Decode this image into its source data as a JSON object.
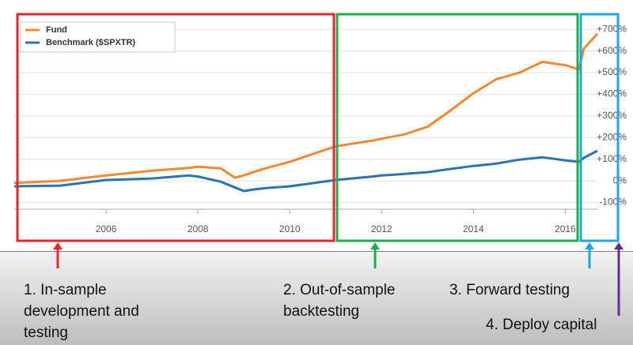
{
  "chart_data": {
    "type": "line",
    "x": [
      2004.0,
      2005.0,
      2006.0,
      2007.0,
      2007.8,
      2008.0,
      2008.5,
      2008.8,
      2009.0,
      2009.2,
      2009.5,
      2010.0,
      2011.0,
      2011.8,
      2012.0,
      2012.5,
      2013.0,
      2013.5,
      2014.0,
      2014.5,
      2015.0,
      2015.5,
      2016.0,
      2016.3,
      2016.4,
      2016.7
    ],
    "series": [
      {
        "name": "Fund",
        "color": "#f7882f",
        "values": [
          -10,
          0,
          25,
          47,
          60,
          65,
          58,
          15,
          25,
          40,
          60,
          88,
          160,
          186,
          195,
          215,
          250,
          325,
          405,
          470,
          500,
          550,
          535,
          515,
          610,
          680
        ]
      },
      {
        "name": "Benchmark ($SPXTR)",
        "color": "#2a74b5",
        "values": [
          -25,
          -22,
          4,
          11,
          25,
          20,
          -4,
          -30,
          -47,
          -40,
          -33,
          -25,
          4,
          20,
          25,
          32,
          40,
          55,
          69,
          80,
          98,
          109,
          95,
          88,
          106,
          139
        ]
      }
    ],
    "xlim": [
      2004.0,
      2016.7
    ],
    "xticks": [
      2006,
      2008,
      2010,
      2012,
      2014,
      2016
    ],
    "ylim": [
      -131,
      763
    ],
    "yticks": [
      {
        "value": -100,
        "label": "-100%"
      },
      {
        "value": 0,
        "label": "0%"
      },
      {
        "value": 100,
        "label": "+100%"
      },
      {
        "value": 200,
        "label": "+200%"
      },
      {
        "value": 300,
        "label": "+300%"
      },
      {
        "value": 400,
        "label": "+400%"
      },
      {
        "value": 500,
        "label": "+500%"
      },
      {
        "value": 600,
        "label": "+600%"
      },
      {
        "value": 700,
        "label": "+700%"
      }
    ],
    "grid": true,
    "legend": "top-left",
    "annotations": [
      "1. In-sample development and testing",
      "2. Out-of-sample backtesting",
      "3. Forward testing",
      "4. Deploy capital"
    ]
  }
}
